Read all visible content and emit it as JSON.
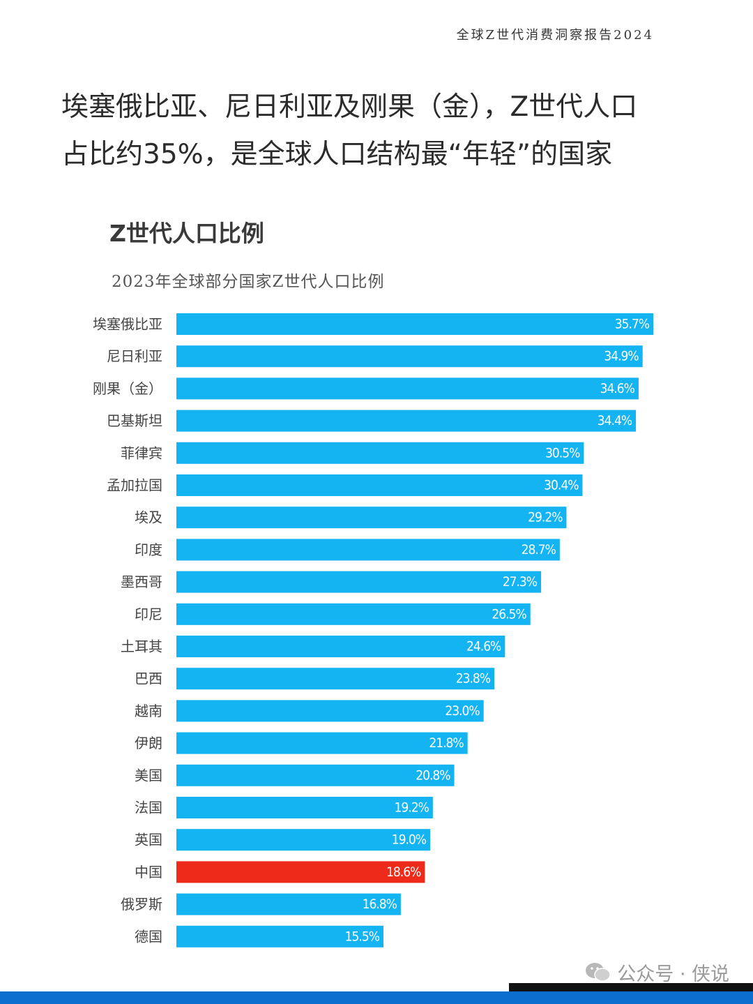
{
  "report_title": "全球Z世代消费洞察报告2024",
  "headline": {
    "line1": "埃塞俄比亚、尼日利亚及刚果（金），Z世代人口",
    "line2": "占比约35%，是全球人口结构最“年轻”的国家"
  },
  "chart_heading": "Z世代人口比例",
  "watermark": "公众号 · 侠说",
  "colors": {
    "bar": "#14b4f2",
    "highlight": "#ee2a1b",
    "bottom_bar": "#0b6fd0"
  },
  "chart_data": {
    "type": "bar",
    "orientation": "horizontal",
    "title": "2023年全球部分国家Z世代人口比例",
    "xlabel": "",
    "ylabel": "",
    "grid": false,
    "legend": "none",
    "value_unit": "%",
    "xlim": [
      0,
      35.7
    ],
    "categories": [
      "埃塞俄比亚",
      "尼日利亚",
      "刚果（金）",
      "巴基斯坦",
      "菲律宾",
      "孟加拉国",
      "埃及",
      "印度",
      "墨西哥",
      "印尼",
      "土耳其",
      "巴西",
      "越南",
      "伊朗",
      "美国",
      "法国",
      "英国",
      "中国",
      "俄罗斯",
      "德国"
    ],
    "values": [
      35.7,
      34.9,
      34.6,
      34.4,
      30.5,
      30.4,
      29.2,
      28.7,
      27.3,
      26.5,
      24.6,
      23.8,
      23.0,
      21.8,
      20.8,
      19.2,
      19.0,
      18.6,
      16.8,
      15.5
    ],
    "data_labels": [
      "35.7%",
      "34.9%",
      "34.6%",
      "34.4%",
      "30.5%",
      "30.4%",
      "29.2%",
      "28.7%",
      "27.3%",
      "26.5%",
      "24.6%",
      "23.8%",
      "23.0%",
      "21.8%",
      "20.8%",
      "19.2%",
      "19.0%",
      "18.6%",
      "16.8%",
      "15.5%"
    ],
    "highlight": "中国"
  }
}
